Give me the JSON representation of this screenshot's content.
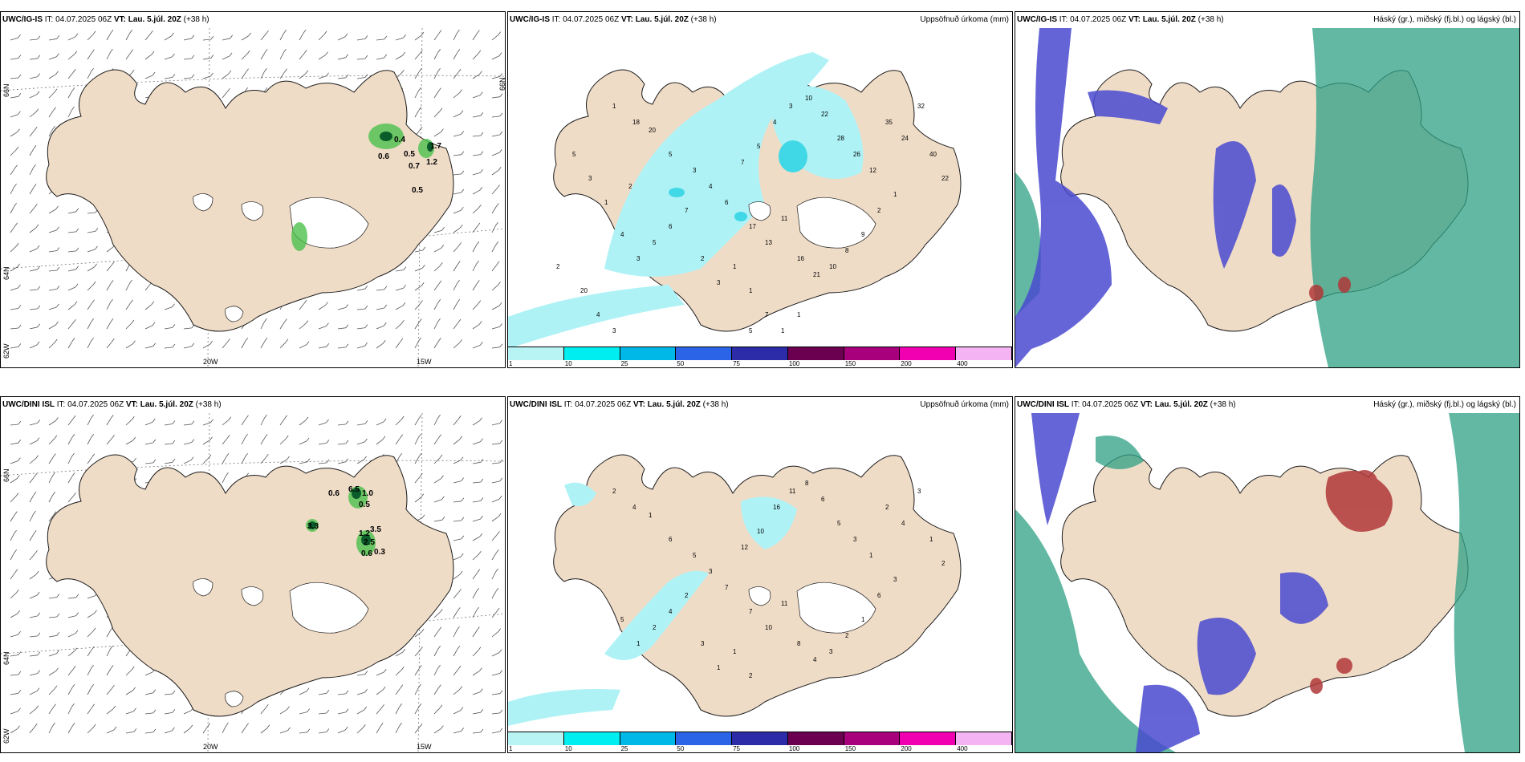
{
  "rows": [
    {
      "model_short": "UWC/IG-IS",
      "model_full": "UWC/IG-IS",
      "it_label": "IT: 04.07.2025 06Z",
      "vt_prefix": "VT:",
      "vt_value": "Lau. 5.júl. 20Z",
      "lead": "(+38 h)",
      "precip_title": "Uppsöfnuð úrkoma (mm)",
      "cloud_title": "Háský (gr.), miðský (fj.bl.) og lágský (bl.)",
      "wind_values": [
        "0.4",
        "0.6",
        "0.5",
        "0.7",
        "1.2",
        "0.5",
        "1.7"
      ],
      "precip_values": [
        "1",
        "18",
        "20",
        "5",
        "3",
        "4",
        "6",
        "7",
        "5",
        "4",
        "3",
        "10",
        "22",
        "28",
        "26",
        "12",
        "35",
        "24",
        "32",
        "40",
        "22",
        "17",
        "13",
        "11",
        "16",
        "21",
        "10",
        "8",
        "9",
        "2",
        "1",
        "6",
        "5",
        "3",
        "4",
        "7",
        "2",
        "3",
        "1",
        "1",
        "2",
        "1",
        "3",
        "5",
        "2",
        "20",
        "4",
        "3",
        "5",
        "7",
        "1",
        "1"
      ]
    },
    {
      "model_short": "UWC/DINI ISL",
      "model_full": "UWC/DINI ISL",
      "it_label": "IT: 04.07.2025 06Z",
      "vt_prefix": "VT:",
      "vt_value": "Lau. 5.júl. 20Z",
      "lead": "(+38 h)",
      "precip_title": "Uppsöfnuð úrkoma (mm)",
      "cloud_title": "Háský (gr.), miðský (fj.bl.) og lágský (bl.)",
      "wind_values": [
        "0.6",
        "3.3",
        "6.5",
        "1.0",
        "0.5",
        "1.2",
        "3.5",
        "0.6",
        "0.3",
        "2.5"
      ],
      "precip_values": [
        "2",
        "4",
        "1",
        "6",
        "5",
        "3",
        "7",
        "12",
        "10",
        "16",
        "11",
        "8",
        "6",
        "5",
        "3",
        "1",
        "2",
        "4",
        "3",
        "1",
        "2",
        "7",
        "10",
        "11",
        "8",
        "4",
        "3",
        "2",
        "1",
        "6",
        "3",
        "4",
        "2",
        "1",
        "5",
        "2",
        "3",
        "1",
        "1",
        "2"
      ]
    }
  ],
  "lon_labels": [
    "20W",
    "15W"
  ],
  "lat_labels": [
    "66N",
    "64N",
    "62W"
  ],
  "legend_ticks": [
    "1",
    "10",
    "25",
    "50",
    "75",
    "100",
    "150",
    "200",
    "400"
  ],
  "legend_colors": [
    "#b8f4f4",
    "#00eef0",
    "#00b8e8",
    "#2c64e8",
    "#2c2ca8",
    "#6c0050",
    "#a8007c",
    "#f000b0",
    "#f4b4f4"
  ],
  "colors": {
    "land": "#efdcc7",
    "coast": "#1a1a1a",
    "precip_light": "#aef2f6",
    "precip_mid": "#40d8e6",
    "cloud_low": "#4a4ad0",
    "cloud_mid": "#2ea084",
    "cloud_high": "#b03838",
    "wind_green": "#4cc04c"
  }
}
